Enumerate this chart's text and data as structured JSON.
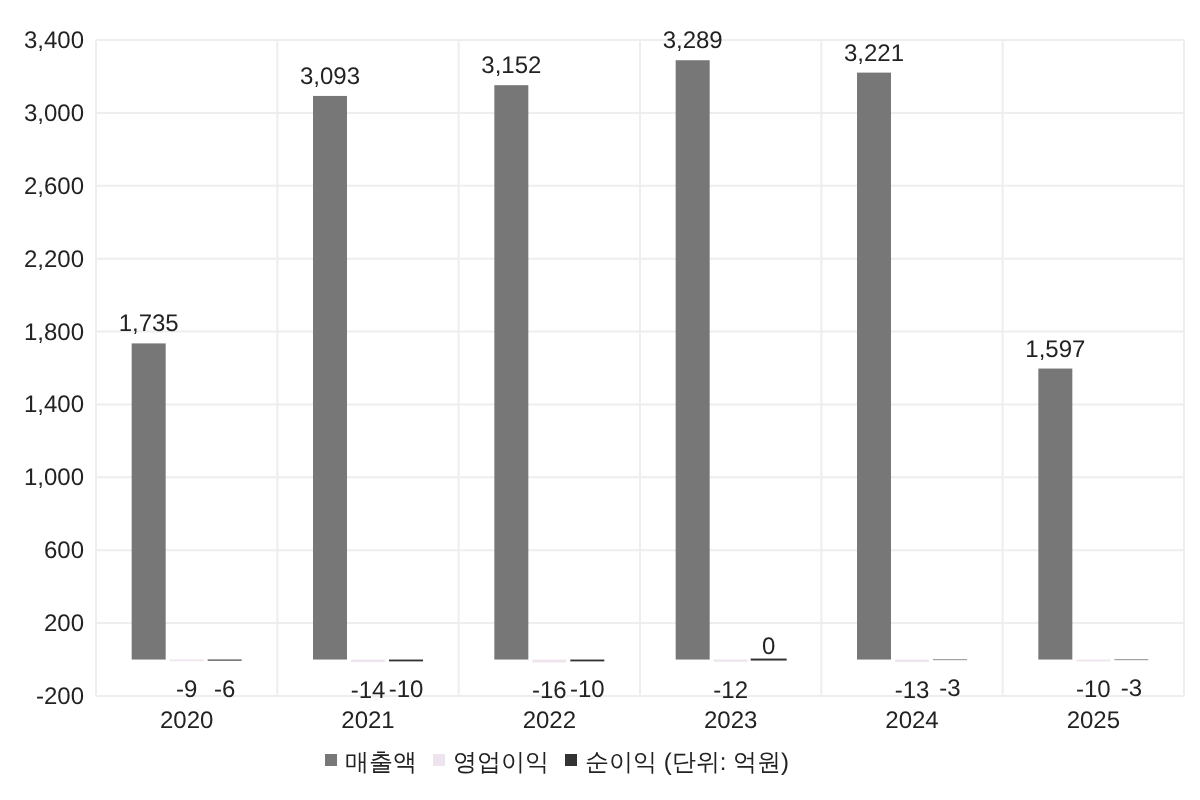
{
  "chart_data": {
    "type": "bar",
    "categories": [
      "2020",
      "2021",
      "2022",
      "2023",
      "2024",
      "2025"
    ],
    "series": [
      {
        "name": "매출액",
        "color": "#777777",
        "values": [
          1735,
          3093,
          3152,
          3289,
          3221,
          1597
        ],
        "value_labels": [
          "1,735",
          "3,093",
          "3,152",
          "3,289",
          "3,221",
          "1,597"
        ]
      },
      {
        "name": "영업이익",
        "color": "#eee4ee",
        "values": [
          -9,
          -14,
          -16,
          -12,
          -13,
          -10
        ],
        "value_labels": [
          "-9",
          "-14",
          "-16",
          "-12",
          "-13",
          "-10"
        ]
      },
      {
        "name": "순이익 (단위: 억원)",
        "color": "#333333",
        "values": [
          -6,
          -10,
          -10,
          0,
          -3,
          -3
        ],
        "value_labels": [
          "-6",
          "-10",
          "-10",
          "0",
          "-3",
          "-3"
        ]
      }
    ],
    "ylim": [
      -200,
      3400
    ],
    "yticks": [
      {
        "value": -200,
        "label": "-200"
      },
      {
        "value": 200,
        "label": "200"
      },
      {
        "value": 600,
        "label": "600"
      },
      {
        "value": 1000,
        "label": "1,000"
      },
      {
        "value": 1400,
        "label": "1,400"
      },
      {
        "value": 1800,
        "label": "1,800"
      },
      {
        "value": 2200,
        "label": "2,200"
      },
      {
        "value": 2600,
        "label": "2,600"
      },
      {
        "value": 3000,
        "label": "3,000"
      },
      {
        "value": 3400,
        "label": "3,400"
      }
    ],
    "grid": true,
    "legend": "bottom"
  }
}
